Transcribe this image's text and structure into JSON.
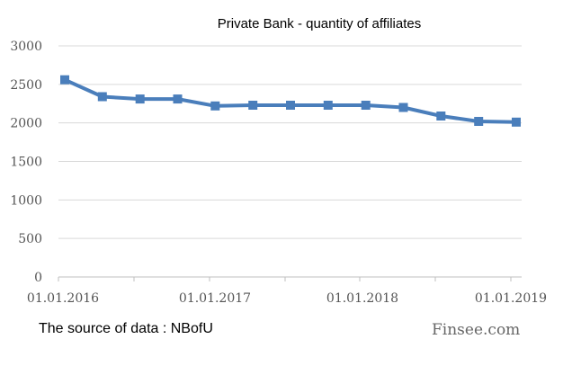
{
  "chart_data": {
    "type": "line",
    "title": "Private Bank - quantity of affiliates",
    "xlabel": "",
    "ylabel": "",
    "ylim": [
      0,
      3000
    ],
    "yticks": [
      "0",
      "500",
      "1000",
      "1500",
      "2000",
      "2500",
      "3000"
    ],
    "xticks": [
      "01.01.2016",
      "01.01.2017",
      "01.01.2018",
      "01.01.2019"
    ],
    "grid": true,
    "legend": "none",
    "series": [
      {
        "color": "#4a7ebb",
        "marker": "square",
        "x": [
          "01.01.2016",
          "01.04.2016",
          "01.07.2016",
          "01.10.2016",
          "01.01.2017",
          "01.04.2017",
          "01.07.2017",
          "01.10.2017",
          "01.01.2018",
          "01.04.2018",
          "01.07.2018",
          "01.10.2018",
          "01.01.2019"
        ],
        "values": [
          2560,
          2340,
          2310,
          2310,
          2220,
          2230,
          2230,
          2230,
          2230,
          2200,
          2090,
          2020,
          2010
        ]
      }
    ]
  },
  "footer": {
    "source": "The source of data : NBofU",
    "brand": "Finsee.com"
  }
}
